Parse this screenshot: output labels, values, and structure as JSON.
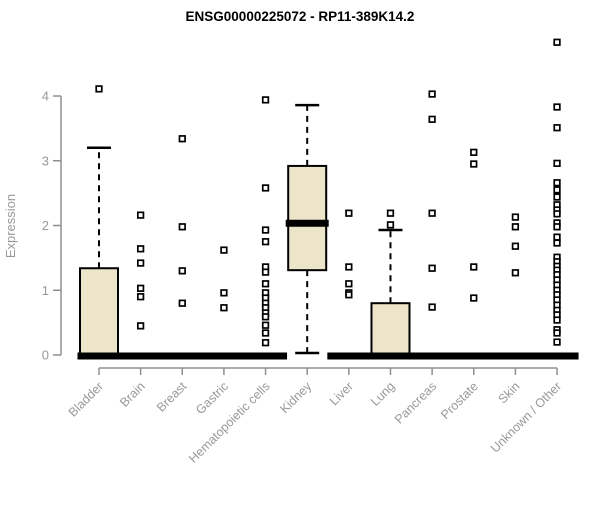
{
  "chart_data": {
    "type": "box",
    "title": "ENSG00000225072 - RP11-389K14.2",
    "ylabel": "Expression",
    "xlabel": "",
    "ylim": [
      0,
      4.9
    ],
    "yticks": [
      0,
      1,
      2,
      3,
      4
    ],
    "grid": false,
    "legend_position": "none",
    "colors": {
      "box_fill": "#ede5c9",
      "box_stroke": "#000000",
      "median": "#000000",
      "outlier_fill": "#ffffff",
      "axis_line": "#8f8f8f",
      "tick_text": "#999999",
      "title_text": "#000000"
    },
    "categories": [
      "Bladder",
      "Brain",
      "Breast",
      "Gastric",
      "Hematopoietic cells",
      "Kidney",
      "Liver",
      "Lung",
      "Pancreas",
      "Prostate",
      "Skin",
      "Unknown / Other"
    ],
    "series": [
      {
        "label": "Bladder",
        "q1": 0,
        "median": 0,
        "q3": 1.34,
        "whisker_low": 0,
        "whisker_high": 3.2,
        "outliers": [
          4.11
        ]
      },
      {
        "label": "Brain",
        "q1": 0,
        "median": 0,
        "q3": 0,
        "whisker_low": 0,
        "whisker_high": 0,
        "outliers": [
          2.16,
          1.64,
          1.42,
          1.03,
          0.9,
          0.45
        ]
      },
      {
        "label": "Breast",
        "q1": 0,
        "median": 0,
        "q3": 0,
        "whisker_low": 0,
        "whisker_high": 0,
        "outliers": [
          3.34,
          1.98,
          1.3,
          0.8
        ]
      },
      {
        "label": "Gastric",
        "q1": 0,
        "median": 0,
        "q3": 0,
        "whisker_low": 0,
        "whisker_high": 0,
        "outliers": [
          1.62,
          0.96,
          0.73
        ]
      },
      {
        "label": "Hematopoietic cells",
        "q1": 0,
        "median": 0,
        "q3": 0,
        "whisker_low": 0,
        "whisker_high": 0,
        "outliers": [
          3.94,
          2.58,
          1.93,
          1.75,
          1.36,
          1.28,
          1.1,
          0.96,
          0.88,
          0.8,
          0.73,
          0.65,
          0.59,
          0.46,
          0.34,
          0.19
        ]
      },
      {
        "label": "Kidney",
        "q1": 1.31,
        "median": 2.05,
        "q3": 2.92,
        "whisker_low": 0.03,
        "whisker_high": 3.86,
        "outliers": []
      },
      {
        "label": "Liver",
        "q1": 0,
        "median": 0,
        "q3": 0,
        "whisker_low": 0,
        "whisker_high": 0,
        "outliers": [
          2.19,
          1.36,
          1.1,
          0.96,
          0.93
        ]
      },
      {
        "label": "Lung",
        "q1": 0,
        "median": 0,
        "q3": 0.8,
        "whisker_low": 0,
        "whisker_high": 1.93,
        "outliers": [
          2.19,
          2.01
        ]
      },
      {
        "label": "Pancreas",
        "q1": 0,
        "median": 0,
        "q3": 0,
        "whisker_low": 0,
        "whisker_high": 0,
        "outliers": [
          4.03,
          3.64,
          2.19,
          1.34,
          0.74
        ]
      },
      {
        "label": "Prostate",
        "q1": 0,
        "median": 0,
        "q3": 0,
        "whisker_low": 0,
        "whisker_high": 0,
        "outliers": [
          3.13,
          2.95,
          1.36,
          0.88
        ]
      },
      {
        "label": "Skin",
        "q1": 0,
        "median": 0,
        "q3": 0,
        "whisker_low": 0,
        "whisker_high": 0,
        "outliers": [
          2.13,
          1.98,
          1.68,
          1.27
        ]
      },
      {
        "label": "Unknown / Other",
        "q1": 0,
        "median": 0,
        "q3": 0,
        "whisker_low": 0,
        "whisker_high": 0,
        "outliers": [
          4.83,
          3.83,
          3.51,
          2.96,
          2.66,
          2.55,
          2.44,
          2.32,
          2.24,
          2.18,
          2.04,
          1.98,
          1.82,
          1.73,
          1.51,
          1.44,
          1.37,
          1.31,
          1.24,
          1.16,
          1.08,
          1.0,
          0.93,
          0.85,
          0.77,
          0.69,
          0.62,
          0.54,
          0.39,
          0.34,
          0.2
        ]
      }
    ]
  }
}
